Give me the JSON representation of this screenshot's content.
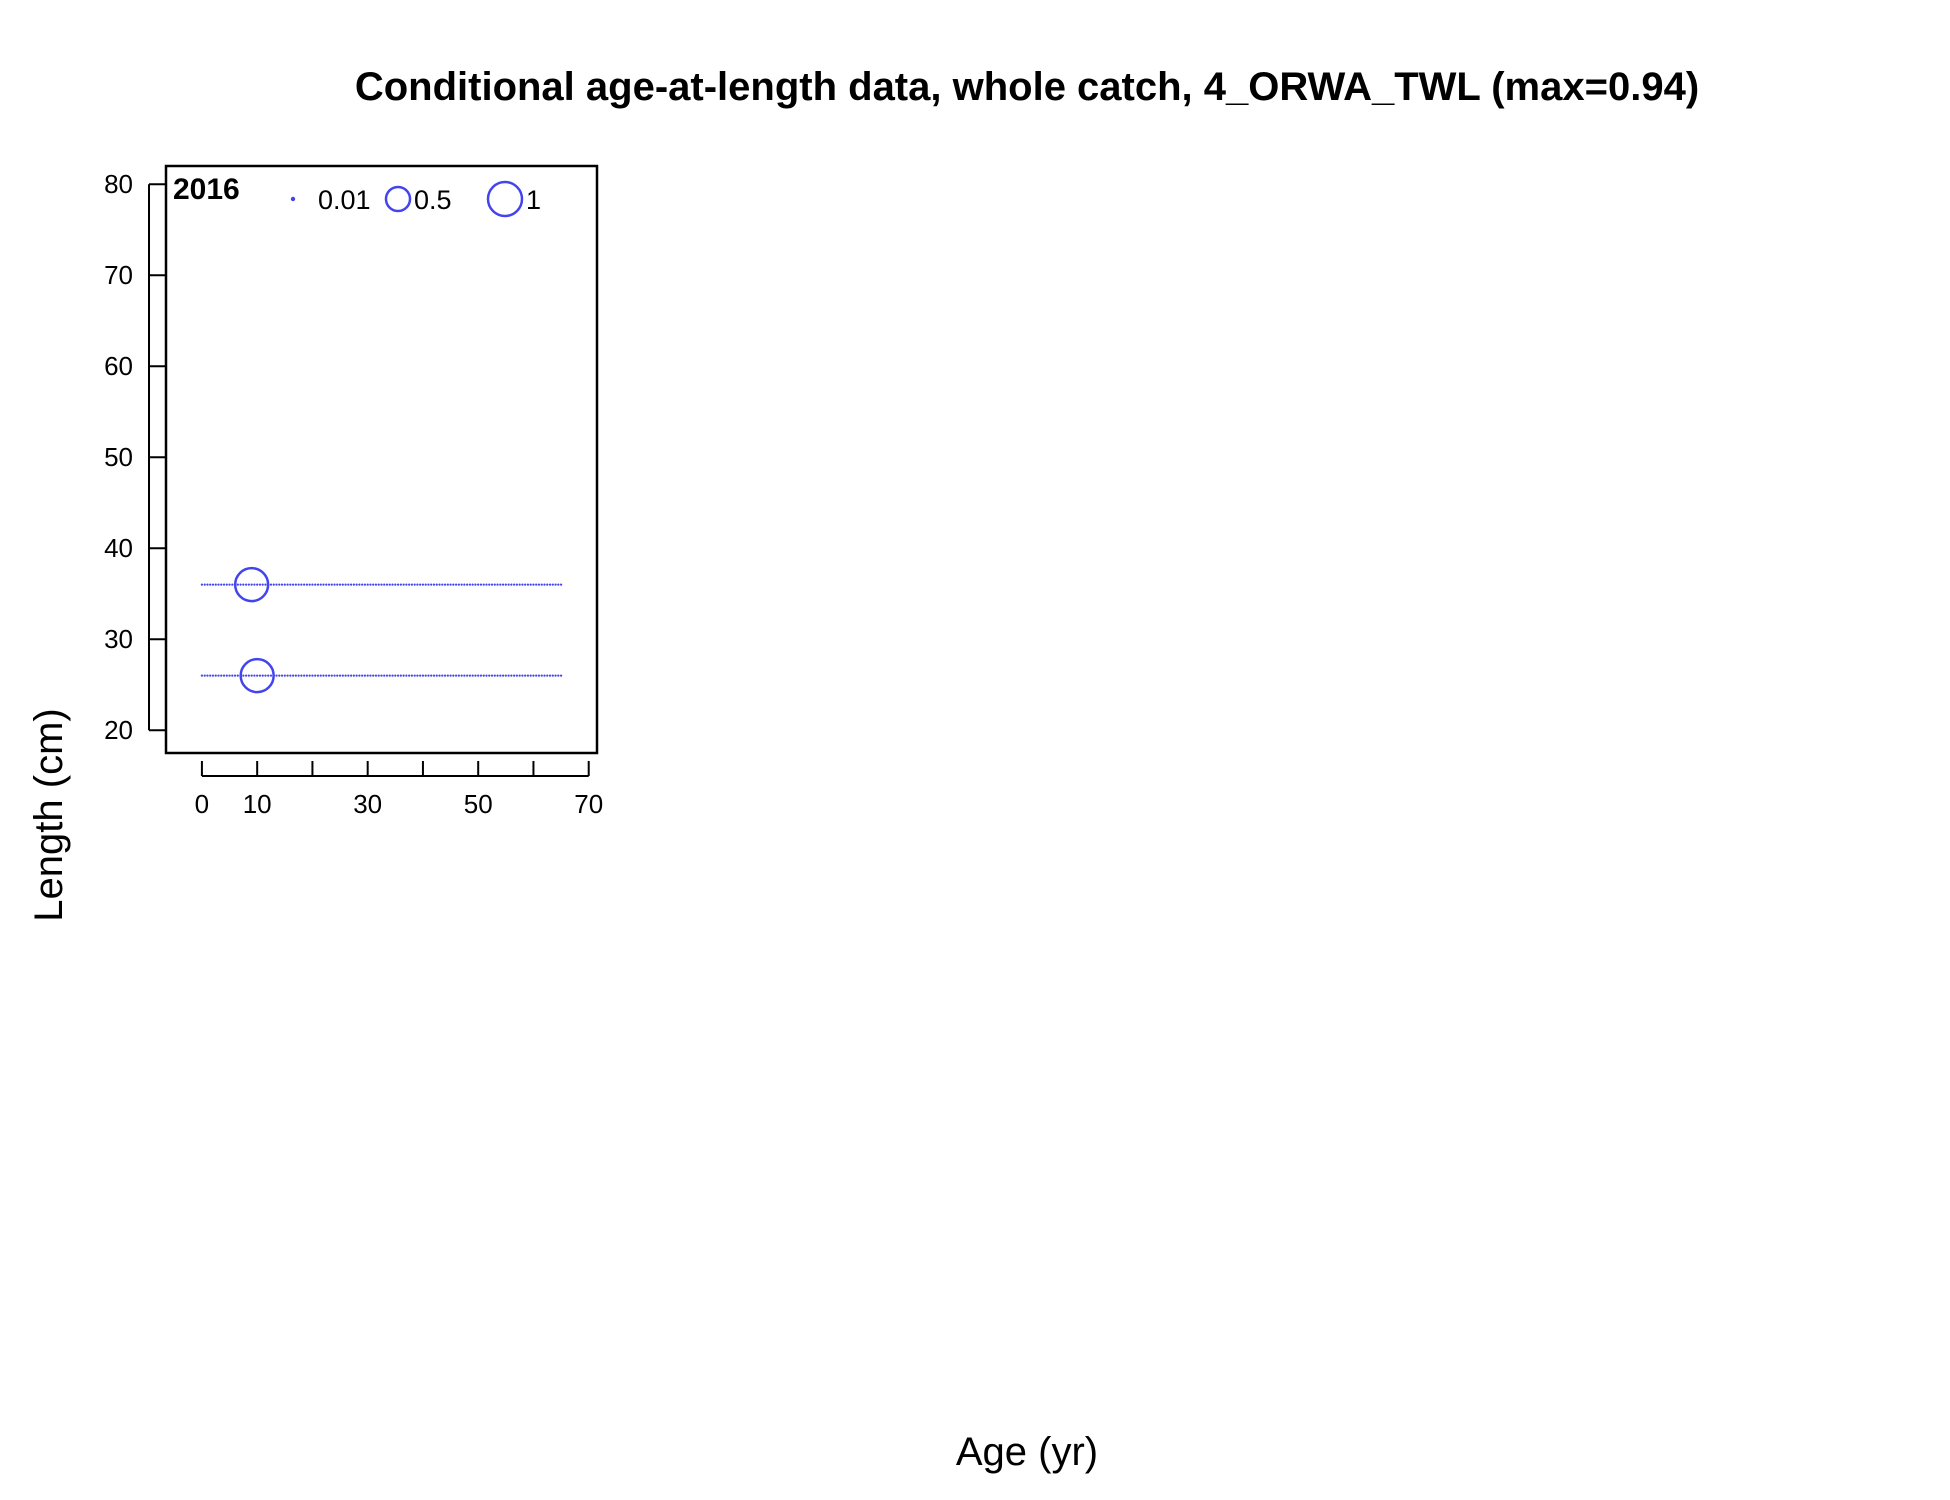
{
  "chart_data": {
    "type": "scatter",
    "title": "Conditional age-at-length data, whole catch, 4_ORWA_TWL (max=0.94)",
    "xlabel": "Age (yr)",
    "ylabel": "Length (cm)",
    "panel_label": "2016",
    "xlim": [
      -6.5,
      71.5
    ],
    "ylim": [
      17.5,
      82
    ],
    "x_ticks": [
      0,
      10,
      20,
      30,
      40,
      50,
      60,
      70
    ],
    "x_tick_labels": [
      {
        "value": 0,
        "label": "0"
      },
      {
        "value": 10,
        "label": "10"
      },
      {
        "value": 30,
        "label": "30"
      },
      {
        "value": 50,
        "label": "50"
      },
      {
        "value": 70,
        "label": "70"
      }
    ],
    "y_ticks": [
      {
        "value": 20,
        "label": "20"
      },
      {
        "value": 30,
        "label": "30"
      },
      {
        "value": 40,
        "label": "40"
      },
      {
        "value": 50,
        "label": "50"
      },
      {
        "value": 60,
        "label": "60"
      },
      {
        "value": 70,
        "label": "70"
      },
      {
        "value": 80,
        "label": "80"
      }
    ],
    "bubble_color": "#4444ee",
    "age_range": [
      0,
      65
    ],
    "rows": [
      {
        "length": 36,
        "bubbles": [
          {
            "age": 9,
            "proportion": 0.94
          }
        ]
      },
      {
        "length": 26,
        "bubbles": [
          {
            "age": 10,
            "proportion": 0.94
          }
        ]
      }
    ],
    "legend": {
      "placement": "top",
      "entries": [
        {
          "value": 0.01,
          "label": "0.01"
        },
        {
          "value": 0.5,
          "label": "0.5"
        },
        {
          "value": 1,
          "label": "1"
        }
      ]
    }
  }
}
